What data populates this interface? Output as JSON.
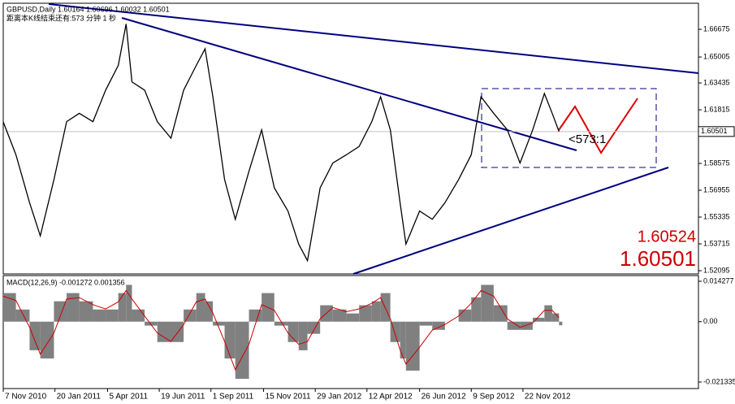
{
  "chart_data": {
    "type": "line",
    "title": "GBPUSD,Daily  1.60164 1.60696 1.60032 1.60501",
    "subtitle": "距离本K线结束还有:573 分钟 1 秒",
    "countdown": "<573:1",
    "current_price": 1.60501,
    "bid_labels": [
      1.60524,
      1.60501
    ],
    "x": [
      0,
      13,
      27,
      38,
      52,
      65,
      78,
      92,
      105,
      118,
      126,
      132,
      145,
      158,
      172,
      185,
      198,
      207,
      215,
      227,
      238,
      252,
      265,
      278,
      292,
      303,
      312,
      325,
      338,
      352,
      365,
      378,
      387,
      397,
      407,
      413,
      427,
      440,
      453,
      467,
      480,
      490,
      503,
      517,
      530,
      543,
      555,
      563,
      570
    ],
    "xlim": [
      0,
      713
    ],
    "xticks": [
      {
        "value": 0,
        "label": "7 Nov 2010"
      },
      {
        "value": 53,
        "label": "20 Jan 2011"
      },
      {
        "value": 107,
        "label": "5 Apr 2011"
      },
      {
        "value": 160,
        "label": "19 Jun 2011"
      },
      {
        "value": 213,
        "label": "1 Sep 2011"
      },
      {
        "value": 267,
        "label": "15 Nov 2011"
      },
      {
        "value": 320,
        "label": "29 Jan 2012"
      },
      {
        "value": 373,
        "label": "12 Apr 2012"
      },
      {
        "value": 427,
        "label": "26 Jun 2012"
      },
      {
        "value": 480,
        "label": "9 Sep 2012"
      },
      {
        "value": 533,
        "label": "22 Nov 2012"
      }
    ],
    "series": [
      {
        "name": "GBPUSD",
        "color": "#000000",
        "values": [
          1.6108,
          1.591,
          1.562,
          1.542,
          1.576,
          1.611,
          1.616,
          1.611,
          1.63,
          1.645,
          1.67,
          1.635,
          1.63,
          1.611,
          1.601,
          1.63,
          1.645,
          1.655,
          1.626,
          1.576,
          1.552,
          1.581,
          1.606,
          1.571,
          1.557,
          1.537,
          1.527,
          1.571,
          1.586,
          1.591,
          1.596,
          1.611,
          1.626,
          1.606,
          1.562,
          1.537,
          1.557,
          1.552,
          1.562,
          1.576,
          1.591,
          1.626,
          1.616,
          1.606,
          1.586,
          1.606,
          1.628,
          1.616,
          1.605
        ]
      }
    ],
    "ylim": [
      1.519,
      1.6825
    ],
    "yticks": [
      1.66675,
      1.65005,
      1.63435,
      1.61815,
      1.58575,
      1.56955,
      1.55335,
      1.53715,
      1.52095
    ],
    "macd": {
      "label": "MACD(12,26,9) -0.001272 0.001356",
      "histogram_color": "#808080",
      "signal_color": "#cc0000",
      "histogram": [
        0.0101,
        0.0043,
        -0.0101,
        -0.013,
        0.0072,
        0.0101,
        0.0072,
        0.0043,
        0.0043,
        0.0101,
        0.013,
        0.0043,
        -0.0014,
        -0.0072,
        -0.0072,
        0.0043,
        0.0101,
        0.0072,
        -0.0014,
        -0.013,
        -0.0202,
        0.0043,
        0.0101,
        -0.0014,
        -0.0072,
        -0.0101,
        -0.0043,
        0.0058,
        0.0043,
        0.0029,
        0.0058,
        0.0072,
        0.0101,
        -0.0072,
        -0.013,
        -0.0173,
        -0.0014,
        -0.0029,
        0,
        0.0043,
        0.0086,
        0.013,
        0.0058,
        -0.0029,
        -0.0029,
        0.0014,
        0.0058,
        0.0029,
        -0.0013
      ],
      "signal": [
        0.009,
        0.0075,
        -0.002,
        -0.0115,
        -0.004,
        0.008,
        0.0085,
        0.006,
        0.0045,
        0.007,
        0.011,
        0.008,
        0.002,
        -0.004,
        -0.007,
        -0.001,
        0.007,
        0.008,
        0.003,
        -0.007,
        -0.017,
        -0.008,
        0.006,
        0.004,
        -0.004,
        -0.008,
        -0.007,
        0.001,
        0.005,
        0.0035,
        0.0045,
        0.0065,
        0.0085,
        0.001,
        -0.01,
        -0.015,
        -0.009,
        -0.003,
        -0.001,
        0.002,
        0.0065,
        0.011,
        0.009,
        0.001,
        -0.002,
        -0.0005,
        0.004,
        0.004,
        0.0014
      ],
      "ylim": [
        -0.02364,
        0.01629
      ],
      "yticks": [
        0.014277,
        {
          "value": 0,
          "label": "0.00"
        },
        -0.021335
      ]
    }
  }
}
